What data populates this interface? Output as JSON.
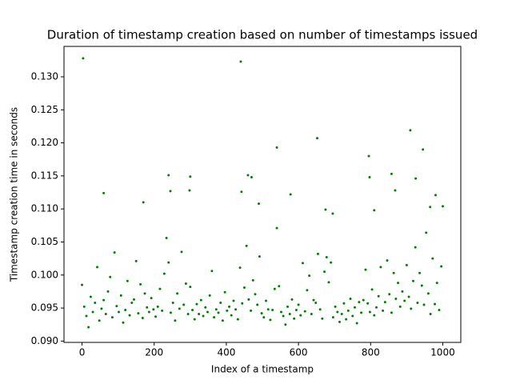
{
  "chart_data": {
    "type": "scatter",
    "title": "Duration of timestamp creation based on number of timestamps issued",
    "x_label": "Index of a timestamp",
    "y_label": "Timestamp creation time in seconds",
    "color": "#008000",
    "xlim": [
      -50,
      1050
    ],
    "ylim": [
      0.0898,
      0.1346
    ],
    "xticks": [
      0,
      200,
      400,
      600,
      800,
      1000
    ],
    "yticks": [
      {
        "value": 0.09,
        "label": "0.090"
      },
      0.095,
      {
        "value": 0.1,
        "label": "0.100"
      },
      0.105,
      {
        "value": 0.11,
        "label": "0.110"
      },
      0.115,
      {
        "value": 0.12,
        "label": "0.120"
      },
      0.125,
      {
        "value": 0.13,
        "label": "0.130"
      }
    ],
    "x": [
      0,
      6,
      12,
      18,
      24,
      30,
      36,
      42,
      48,
      54,
      60,
      66,
      72,
      78,
      84,
      90,
      96,
      102,
      108,
      114,
      120,
      126,
      132,
      138,
      144,
      150,
      156,
      162,
      168,
      174,
      180,
      186,
      192,
      198,
      204,
      210,
      216,
      222,
      228,
      234,
      240,
      246,
      252,
      258,
      264,
      270,
      276,
      282,
      288,
      294,
      300,
      306,
      312,
      318,
      324,
      330,
      336,
      342,
      348,
      354,
      360,
      366,
      372,
      378,
      384,
      390,
      396,
      402,
      408,
      414,
      420,
      426,
      432,
      438,
      444,
      450,
      456,
      462,
      468,
      474,
      480,
      486,
      492,
      498,
      504,
      510,
      516,
      522,
      528,
      534,
      540,
      546,
      552,
      558,
      564,
      570,
      576,
      582,
      588,
      594,
      600,
      606,
      612,
      618,
      624,
      630,
      636,
      642,
      648,
      654,
      660,
      666,
      672,
      678,
      684,
      690,
      696,
      702,
      708,
      714,
      720,
      726,
      732,
      738,
      744,
      750,
      756,
      762,
      768,
      774,
      780,
      786,
      792,
      798,
      804,
      810,
      816,
      822,
      828,
      834,
      840,
      846,
      852,
      858,
      864,
      870,
      876,
      882,
      888,
      894,
      900,
      906,
      912,
      918,
      924,
      930,
      936,
      942,
      948,
      954,
      960,
      966,
      972,
      978,
      984,
      990,
      996,
      3,
      440,
      540,
      652,
      910,
      945,
      795,
      797,
      60,
      240,
      300,
      298,
      245,
      460,
      442,
      578,
      868,
      858,
      925,
      980,
      1000,
      170,
      470,
      490,
      675,
      695,
      810,
      965
    ],
    "values": [
      0.0985,
      0.0952,
      0.0938,
      0.0921,
      0.0967,
      0.0944,
      0.0958,
      0.1012,
      0.0931,
      0.0949,
      0.0962,
      0.0941,
      0.0975,
      0.0997,
      0.0936,
      0.1034,
      0.0953,
      0.0944,
      0.0969,
      0.0928,
      0.0947,
      0.0991,
      0.0939,
      0.0958,
      0.0963,
      0.1021,
      0.0942,
      0.0986,
      0.0935,
      0.0972,
      0.0951,
      0.0944,
      0.0965,
      0.0948,
      0.0937,
      0.0952,
      0.0979,
      0.0946,
      0.1002,
      0.1056,
      0.1019,
      0.0943,
      0.0958,
      0.0931,
      0.0972,
      0.0949,
      0.1035,
      0.0955,
      0.0987,
      0.0941,
      0.0982,
      0.0947,
      0.0933,
      0.0956,
      0.0941,
      0.0962,
      0.0938,
      0.0951,
      0.0944,
      0.0969,
      0.1006,
      0.0936,
      0.0948,
      0.0943,
      0.0958,
      0.0931,
      0.0974,
      0.0946,
      0.0952,
      0.0939,
      0.0961,
      0.0948,
      0.0933,
      0.1011,
      0.0957,
      0.0981,
      0.1044,
      0.0963,
      0.0946,
      0.0992,
      0.0971,
      0.0955,
      0.1028,
      0.0942,
      0.0936,
      0.0961,
      0.0948,
      0.0932,
      0.0947,
      0.0979,
      0.1071,
      0.0983,
      0.0944,
      0.0938,
      0.0925,
      0.0952,
      0.0941,
      0.0963,
      0.0934,
      0.0947,
      0.0955,
      0.0939,
      0.1018,
      0.0945,
      0.0977,
      0.0999,
      0.0941,
      0.0962,
      0.0958,
      0.1032,
      0.0948,
      0.0934,
      0.1005,
      0.1027,
      0.0989,
      0.1019,
      0.0936,
      0.0952,
      0.0944,
      0.0929,
      0.0941,
      0.0957,
      0.0933,
      0.0946,
      0.0964,
      0.0938,
      0.0951,
      0.0927,
      0.0959,
      0.0943,
      0.0962,
      0.1008,
      0.0957,
      0.0944,
      0.0978,
      0.0939,
      0.0951,
      0.0968,
      0.1012,
      0.0946,
      0.0959,
      0.1022,
      0.0971,
      0.0943,
      0.1003,
      0.0964,
      0.0988,
      0.0952,
      0.0975,
      0.0961,
      0.1015,
      0.0967,
      0.0949,
      0.0991,
      0.1042,
      0.0958,
      0.1003,
      0.0984,
      0.0955,
      0.1064,
      0.0972,
      0.0941,
      0.1025,
      0.0956,
      0.0988,
      0.0947,
      0.1013,
      0.1328,
      0.1323,
      0.1193,
      0.1207,
      0.1219,
      0.119,
      0.118,
      0.1148,
      0.1124,
      0.1151,
      0.1149,
      0.1128,
      0.1127,
      0.1151,
      0.1126,
      0.1122,
      0.1128,
      0.1153,
      0.1146,
      0.1121,
      0.1104,
      0.111,
      0.1148,
      0.1108,
      0.1099,
      0.1093,
      0.1098,
      0.1103
    ]
  }
}
